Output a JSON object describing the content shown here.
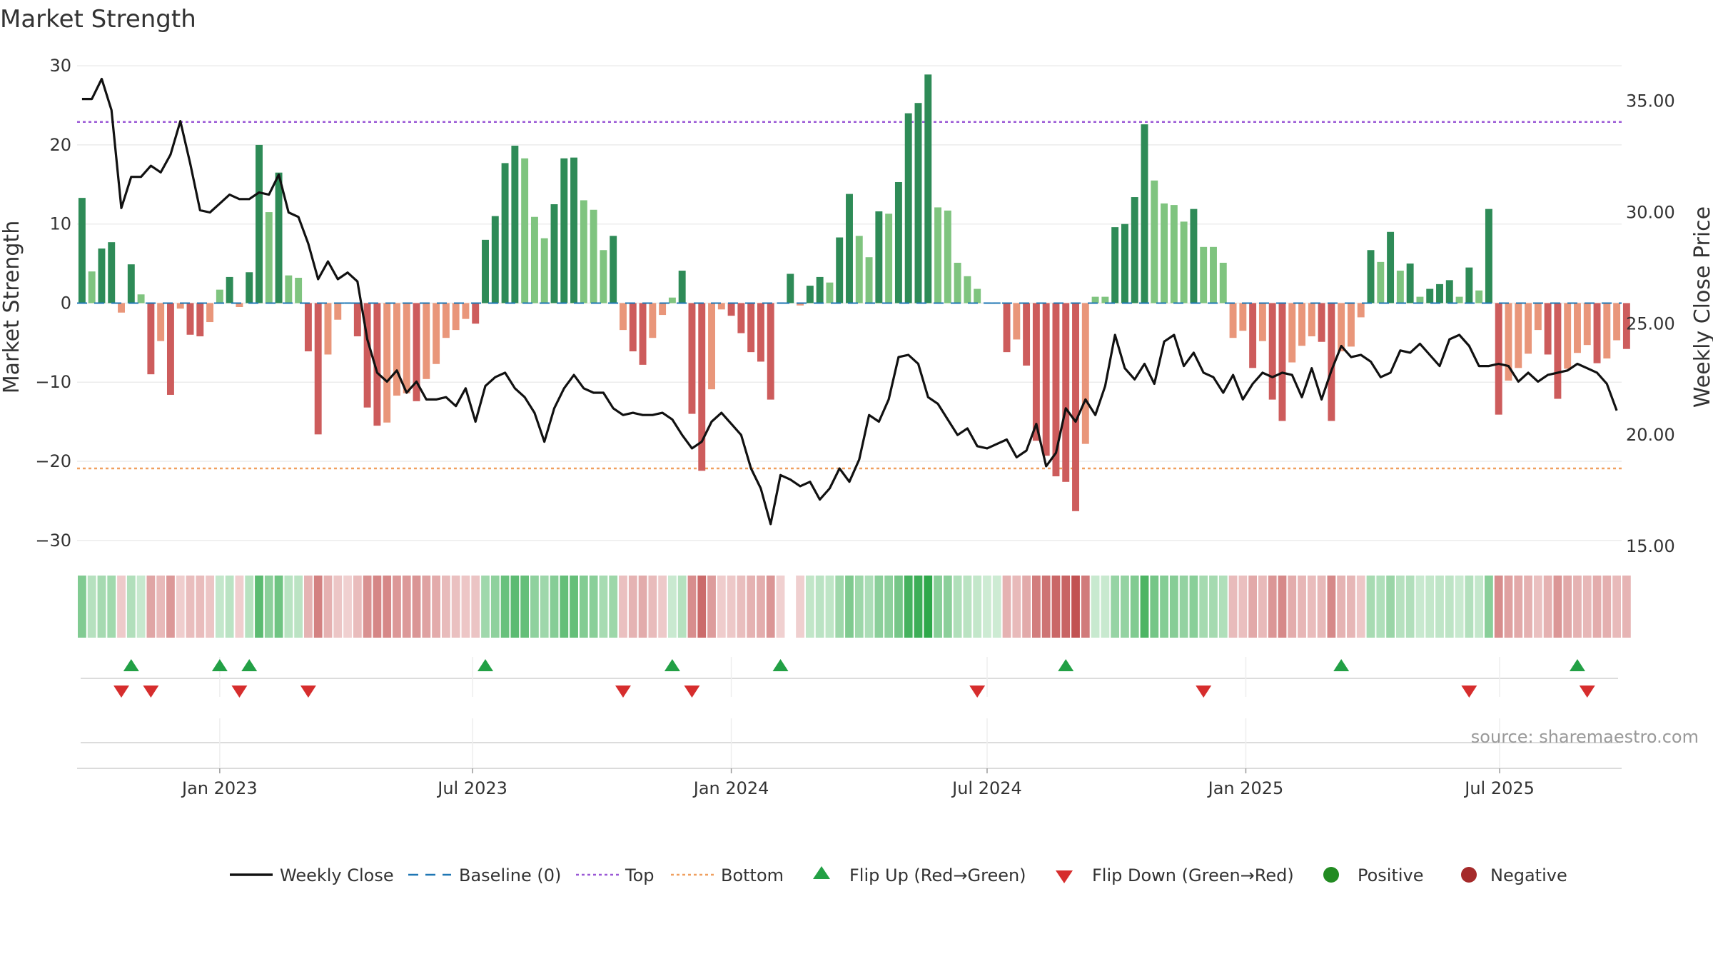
{
  "chart_data": {
    "type": "bar",
    "title": "Market Strength",
    "ylabel": "Market Strength",
    "y2label": "Weekly Close Price",
    "ylim": [
      -33,
      32
    ],
    "y2lim": [
      14.2,
      37.3
    ],
    "yticks": [
      30,
      20,
      10,
      0,
      -10,
      -20,
      -30
    ],
    "ytick_labels": [
      "30",
      "20",
      "10",
      "0",
      "−10",
      "−20",
      "−30"
    ],
    "y2ticks": [
      35,
      30,
      25,
      20,
      15
    ],
    "y2tick_labels": [
      "35.00",
      "30.00",
      "25.00",
      "20.00",
      "15.00"
    ],
    "top_line": 22.9,
    "bottom_line": -20.9,
    "x_start": "2022-10-14",
    "x_weeks": 157,
    "xticks": [
      {
        "label": "Jan 2023",
        "week": 14.5
      },
      {
        "label": "Jul 2023",
        "week": 40.2
      },
      {
        "label": "Jan 2024",
        "week": 66.5
      },
      {
        "label": "Jul 2024",
        "week": 92.5
      },
      {
        "label": "Jan 2025",
        "week": 118.8
      },
      {
        "label": "Jul 2025",
        "week": 144.6
      }
    ],
    "series": [
      {
        "name": "Market Strength",
        "values": [
          13.3,
          4,
          6.9,
          7.7,
          -1.2,
          4.9,
          1.1,
          -9,
          -4.8,
          -11.6,
          -0.7,
          -4,
          -4.2,
          -2.4,
          1.7,
          3.3,
          -0.5,
          3.9,
          20,
          11.5,
          16.5,
          3.5,
          3.2,
          -6.1,
          -16.6,
          -6.5,
          -2.1,
          0,
          -4.2,
          -13.2,
          -15.5,
          -15.1,
          -11.7,
          -11.4,
          -12.4,
          -9.6,
          -7.7,
          -4.4,
          -3.4,
          -2,
          -2.6,
          8,
          11,
          17.7,
          19.9,
          18.3,
          10.9,
          8.2,
          12.5,
          18.3,
          18.4,
          13,
          11.8,
          6.7,
          8.5,
          -3.4,
          -6.1,
          -7.8,
          -4.4,
          -1.5,
          0.7,
          4.1,
          -14,
          -21.2,
          -10.9,
          -0.8,
          -1.6,
          -3.8,
          -6.2,
          -7.4,
          -12.2,
          0,
          3.7,
          -0.3,
          2.2,
          3.3,
          2.6,
          8.3,
          13.8,
          8.5,
          5.8,
          11.6,
          11.3,
          15.3,
          24,
          25.3,
          28.9,
          12.1,
          11.7,
          5.1,
          3.4,
          1.8,
          0,
          0,
          -6.2,
          -4.6,
          -7.9,
          -17.4,
          -19.3,
          -21.9,
          -22.6,
          -26.3,
          -17.8,
          0.8,
          0.8,
          9.6,
          10,
          13.4,
          22.6,
          15.5,
          12.6,
          12.4,
          10.3,
          11.9,
          7.1,
          7.1,
          5.1,
          -4.4,
          -3.5,
          -8.2,
          -4.8,
          -12.2,
          -14.9,
          -7.5,
          -5.4,
          -4.2,
          -4.9,
          -14.9,
          -6.1,
          -5.5,
          -1.8,
          6.7,
          5.2,
          9,
          4.1,
          5,
          0.8,
          1.8,
          2.4,
          2.9,
          0.8,
          4.5,
          1.6,
          11.9,
          -14.1,
          -9.8,
          -8.2,
          -6.4,
          -3.4,
          -6.5,
          -12.1,
          -8.3,
          -6.3,
          -5.3,
          -7.6,
          -7,
          -4.7,
          -5.8
        ]
      },
      {
        "name": "Weekly Close",
        "values": [
          35.1,
          35.1,
          36.0,
          34.6,
          30.2,
          31.6,
          31.6,
          32.1,
          31.8,
          32.6,
          34.1,
          32.2,
          30.1,
          30.0,
          30.4,
          30.8,
          30.6,
          30.6,
          30.9,
          30.8,
          31.7,
          30.0,
          29.8,
          28.6,
          27.0,
          27.8,
          27.0,
          27.3,
          26.9,
          24.3,
          22.8,
          22.4,
          22.9,
          21.9,
          22.4,
          21.6,
          21.6,
          21.7,
          21.3,
          22.1,
          20.6,
          22.2,
          22.6,
          22.8,
          22.1,
          21.7,
          21.0,
          19.7,
          21.2,
          22.1,
          22.7,
          22.1,
          21.9,
          21.9,
          21.2,
          20.9,
          21.0,
          20.9,
          20.9,
          21.0,
          20.7,
          20.0,
          19.4,
          19.7,
          20.6,
          21.0,
          20.5,
          20.0,
          18.5,
          17.6,
          16.0,
          18.2,
          18.0,
          17.7,
          17.9,
          17.1,
          17.6,
          18.5,
          17.9,
          18.9,
          20.9,
          20.6,
          21.6,
          23.5,
          23.6,
          23.2,
          21.7,
          21.4,
          20.7,
          20.0,
          20.3,
          19.5,
          19.4,
          19.6,
          19.8,
          19.0,
          19.3,
          20.5,
          18.6,
          19.2,
          21.2,
          20.6,
          21.6,
          20.9,
          22.2,
          24.5,
          23.0,
          22.5,
          23.2,
          22.3,
          24.2,
          24.5,
          23.1,
          23.7,
          22.8,
          22.6,
          21.9,
          22.7,
          21.6,
          22.3,
          22.8,
          22.6,
          22.8,
          22.7,
          21.7,
          23.0,
          21.6,
          22.9,
          24.0,
          23.5,
          23.6,
          23.3,
          22.6,
          22.8,
          23.8,
          23.7,
          24.1,
          23.6,
          23.1,
          24.3,
          24.5,
          24.0,
          23.1,
          23.1,
          23.2,
          23.1,
          22.4,
          22.8,
          22.4,
          22.7,
          22.8,
          22.9,
          23.2,
          23.0,
          22.8,
          22.3,
          21.1
        ]
      }
    ],
    "flip_up_weeks": [
      5,
      14,
      17,
      41,
      60,
      71,
      100,
      128,
      152
    ],
    "flip_down_weeks": [
      4,
      7,
      16,
      23,
      55,
      62,
      91,
      114,
      141,
      153
    ],
    "gap_weeks": [
      72
    ],
    "legend": [
      {
        "label": "Weekly Close",
        "kind": "line"
      },
      {
        "label": "Baseline (0)",
        "kind": "dash"
      },
      {
        "label": "Top",
        "kind": "dotted-purple"
      },
      {
        "label": "Bottom",
        "kind": "dotted-orange"
      },
      {
        "label": "Flip Up (Red→Green)",
        "kind": "triangle-up"
      },
      {
        "label": "Flip Down (Green→Red)",
        "kind": "triangle-down"
      },
      {
        "label": "Positive",
        "kind": "dot-green"
      },
      {
        "label": "Negative",
        "kind": "dot-red"
      }
    ],
    "source": "source: sharemaestro.com"
  },
  "colors": {
    "green_strong": "#2e8b57",
    "green_light": "#7fc47f",
    "red_strong": "#cd5c5c",
    "red_light": "#e9967a",
    "line": "#111111",
    "baseline": "#1f77b4",
    "top": "#9b59d6",
    "bottom": "#f0a060",
    "tri_up": "#22a045",
    "tri_down": "#d62d2d",
    "dot_pos": "#228b22",
    "dot_neg": "#a52a2a"
  }
}
